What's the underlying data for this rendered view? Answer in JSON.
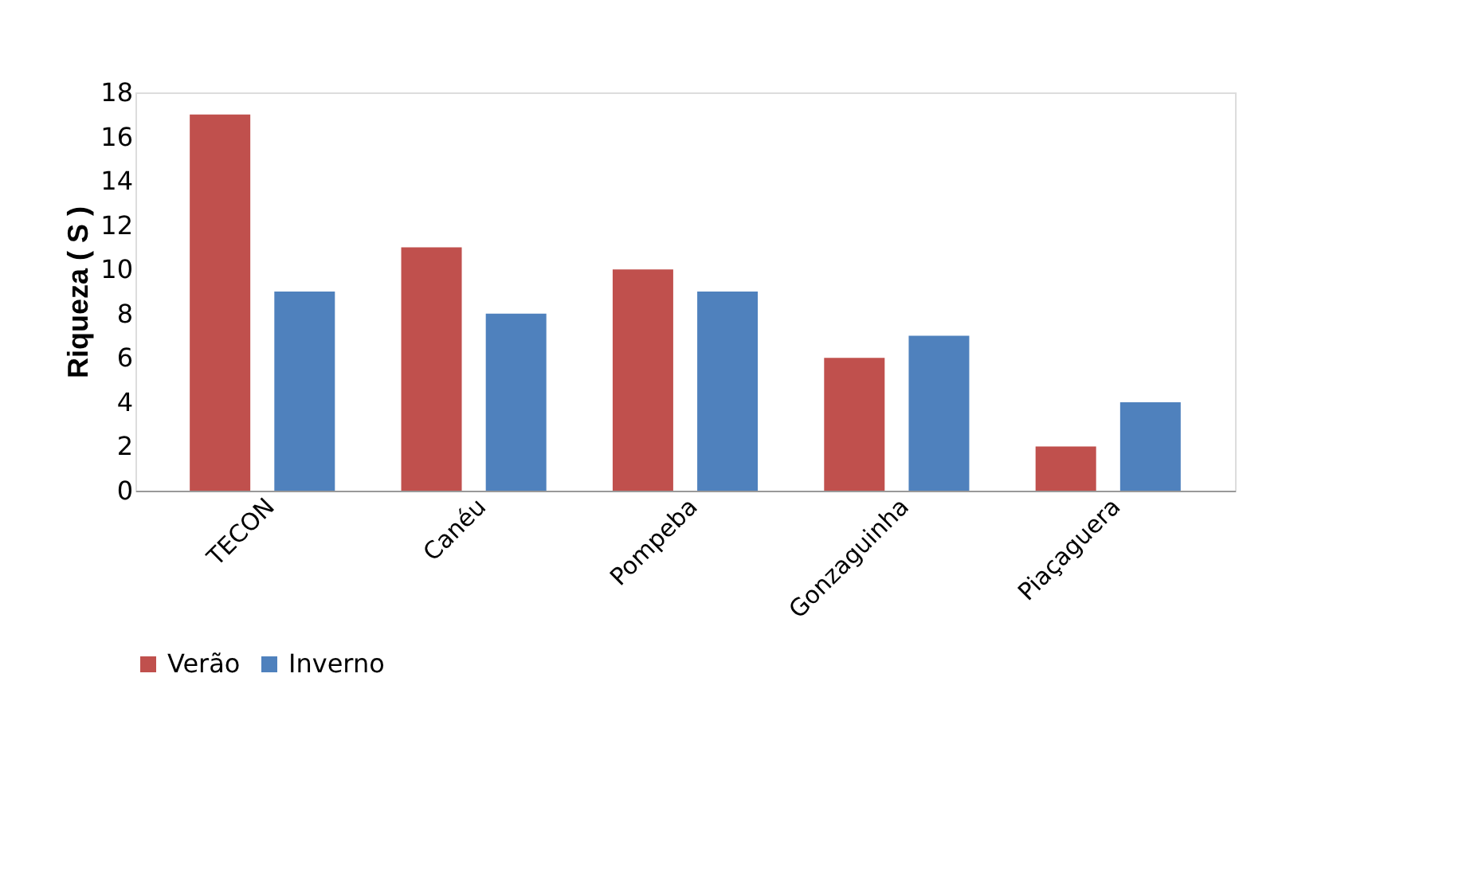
{
  "chart_data": {
    "type": "bar",
    "ylabel": "Riqueza ( S )",
    "categories": [
      "TECON",
      "Canéu",
      "Pompeba",
      "Gonzaguinha",
      "Piaçaguera"
    ],
    "series": [
      {
        "name": "Verão",
        "color": "#c0504d",
        "values": [
          17,
          11,
          10,
          6,
          2
        ]
      },
      {
        "name": "Inverno",
        "color": "#4f81bd",
        "values": [
          9,
          8,
          9,
          7,
          4
        ]
      }
    ],
    "ylim": [
      0,
      18
    ],
    "yticks": [
      0,
      2,
      4,
      6,
      8,
      10,
      12,
      14,
      16,
      18
    ],
    "grid": false,
    "legend": "bottom"
  }
}
